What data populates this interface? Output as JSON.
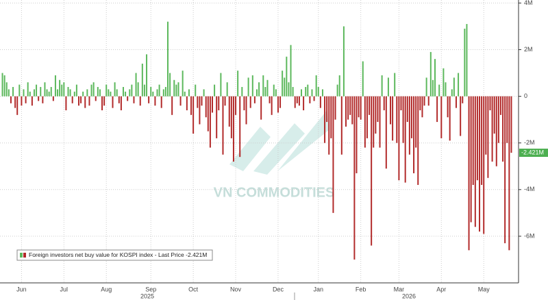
{
  "chart_data": {
    "type": "bar",
    "series": [
      {
        "name": "Foreign investors net buy value for KOSPI index - Last Price",
        "color_positive": "#5cb85c",
        "color_negative": "#b22a2a",
        "values": [
          1.0,
          0.9,
          0.6,
          0.3,
          -0.3,
          0.4,
          -0.5,
          -0.8,
          0.5,
          -0.4,
          0.3,
          -0.3,
          0.6,
          0.2,
          -0.4,
          0.3,
          0.5,
          -0.2,
          0.4,
          -0.3,
          0.6,
          0.3,
          0.2,
          0.4,
          -0.2,
          0.9,
          0.3,
          0.7,
          0.5,
          0.6,
          -0.6,
          0.4,
          0.3,
          -0.3,
          0.2,
          0.5,
          -0.4,
          -0.3,
          0.2,
          -0.5,
          0.3,
          -0.4,
          0.5,
          0.6,
          -0.2,
          0.4,
          0.3,
          -0.6,
          -0.4,
          0.5,
          0.3,
          0.2,
          -0.5,
          0.6,
          0.3,
          -0.3,
          -0.6,
          0.4,
          0.2,
          -0.2,
          0.3,
          0.5,
          -0.3,
          1.0,
          0.6,
          -0.4,
          1.4,
          0.5,
          1.8,
          -0.3,
          0.4,
          0.2,
          -0.4,
          0.3,
          0.5,
          -0.5,
          0.3,
          0.4,
          3.2,
          1.0,
          -0.8,
          0.7,
          0.5,
          0.6,
          -0.4,
          1.1,
          0.2,
          -0.6,
          0.3,
          -0.8,
          -1.6,
          0.5,
          -0.5,
          -1.2,
          -0.4,
          0.3,
          -0.9,
          -1.5,
          -2.2,
          -0.7,
          0.5,
          -1.8,
          -0.6,
          1.0,
          -2.5,
          -0.4,
          0.6,
          -1.3,
          -1.8,
          -2.8,
          -0.8,
          1.1,
          -2.6,
          0.4,
          -0.6,
          -1.2,
          0.8,
          -0.5,
          0.9,
          -0.3,
          0.3,
          0.6,
          -1.0,
          0.9,
          0.4,
          0.7,
          -0.3,
          -0.8,
          0.5,
          0.3,
          -0.7,
          -0.5,
          1.1,
          0.8,
          1.7,
          0.6,
          2.2,
          0.4,
          -0.5,
          -0.3,
          -0.4,
          0.3,
          -0.6,
          0.4,
          0.5,
          -0.3,
          0.3,
          -0.2,
          0.9,
          0.4,
          -0.5,
          0.3,
          -2.0,
          -1.1,
          -2.5,
          -1.8,
          -5.0,
          -1.0,
          0.5,
          0.9,
          -2.5,
          3.0,
          -1.3,
          -1.0,
          -0.8,
          -1.2,
          -7.0,
          -3.3,
          -0.9,
          -1.0,
          1.5,
          -2.2,
          -1.8,
          -0.8,
          -6.4,
          -2.2,
          -1.6,
          -1.1,
          -2.2,
          0.9,
          -0.6,
          -3.1,
          0.8,
          -1.2,
          -1.9,
          1.0,
          -2.0,
          -3.6,
          -0.6,
          -2.0,
          -3.7,
          -1.1,
          -2.5,
          -1.8,
          -3.3,
          -2.2,
          -3.8,
          -0.6,
          -0.9,
          -0.4,
          0.8,
          -0.4,
          1.9,
          0.7,
          1.6,
          -1.1,
          0.5,
          -1.8,
          1.2,
          0.6,
          -0.9,
          -1.9,
          0.3,
          0.8,
          -0.5,
          1.0,
          -1.7,
          -0.3,
          2.9,
          3.1,
          -6.6,
          -5.4,
          -3.8,
          -5.6,
          -3.6,
          -5.8,
          -3.8,
          -5.9,
          -2.5,
          -3.5,
          -0.6,
          -2.8,
          -1.6,
          -3.0,
          -2.0,
          -0.8,
          -2.8,
          -6.3,
          -2.0,
          -6.6,
          -2.421
        ]
      }
    ],
    "categories": [
      null,
      null,
      null,
      null,
      null,
      null,
      null,
      null,
      null,
      "Jun",
      null,
      null,
      null,
      null,
      null,
      null,
      null,
      null,
      null,
      null,
      null,
      null,
      null,
      null,
      null,
      null,
      null,
      null,
      null,
      "Jul",
      null,
      null,
      null,
      null,
      null,
      null,
      null,
      null,
      null,
      null,
      null,
      null,
      null,
      null,
      null,
      null,
      null,
      null,
      null,
      "Aug",
      null,
      null,
      null,
      null,
      null,
      null,
      null,
      null,
      null,
      null,
      null,
      null,
      null,
      null,
      null,
      null,
      null,
      null,
      null,
      null,
      "Sep",
      null,
      null,
      null,
      null,
      null,
      null,
      null,
      null,
      null,
      null,
      null,
      null,
      null,
      null,
      null,
      null,
      null,
      null,
      null,
      "Oct",
      null,
      null,
      null,
      null,
      null,
      null,
      null,
      null,
      null,
      null,
      null,
      null,
      null,
      null,
      null,
      null,
      null,
      null,
      null,
      "Nov",
      null,
      null,
      null,
      null,
      null,
      null,
      null,
      null,
      null,
      null,
      null,
      null,
      null,
      null,
      null,
      null,
      null,
      null,
      null,
      "Dec",
      null,
      null,
      null,
      null,
      null,
      null,
      null,
      null,
      null,
      null,
      null,
      null,
      null,
      null,
      null,
      null,
      null,
      null,
      "Jan",
      null,
      null,
      null,
      null,
      null,
      null,
      null,
      null,
      null,
      null,
      null,
      null,
      null,
      null,
      null,
      null,
      null,
      null,
      null,
      "Feb",
      null,
      null,
      null,
      null,
      null,
      null,
      null,
      null,
      null,
      null,
      null,
      null,
      null,
      null,
      null,
      null,
      null,
      "Mar",
      null,
      null,
      null,
      null,
      null,
      null,
      null,
      null,
      null,
      null,
      null,
      null,
      null,
      null,
      null,
      null,
      null,
      null,
      null,
      "Apr",
      null,
      null,
      null,
      null,
      null,
      null,
      null,
      null,
      null,
      null,
      null,
      null,
      null,
      null,
      null,
      null,
      null,
      null,
      null,
      "May",
      null,
      null,
      null,
      null,
      null,
      null,
      null,
      null,
      null,
      null,
      null,
      null,
      null
    ],
    "year_labels": [
      "2025",
      "2026"
    ],
    "last_price": {
      "value": -2.421,
      "label": "-2.421M"
    },
    "ylim": [
      -8,
      4.1
    ],
    "yticks": [
      {
        "value": -6,
        "label": "-6M"
      },
      {
        "value": -4,
        "label": "-4M"
      },
      {
        "value": -2,
        "label": "-2M"
      },
      0,
      {
        "value": 2,
        "label": "2M"
      },
      {
        "value": 4,
        "label": "4M"
      }
    ],
    "grid": true,
    "watermark": "VN COMMODITIES"
  }
}
